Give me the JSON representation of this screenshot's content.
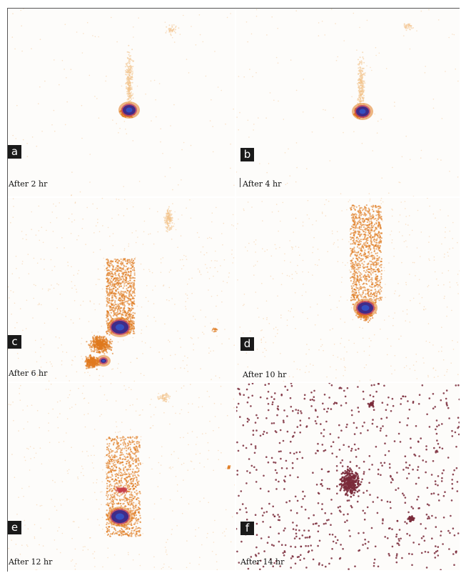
{
  "panels": [
    {
      "letter": "a",
      "caption": "After 2 hr"
    },
    {
      "letter": "b",
      "caption": "After 4 hr"
    },
    {
      "letter": "c",
      "caption": "After 6 hr"
    },
    {
      "letter": "d",
      "caption": "After 10 hr"
    },
    {
      "letter": "e",
      "caption": "After 12 hr"
    },
    {
      "letter": "f",
      "caption": "After 14 hr"
    }
  ],
  "colors": {
    "background": "#ffffff",
    "hot_core": "#3a2a8a",
    "uptake_orange": "#e07a1e",
    "uptake_faint": "#f3c28a",
    "speckle_f": "#7a2a3a",
    "label_box": "#1a1a1a"
  }
}
